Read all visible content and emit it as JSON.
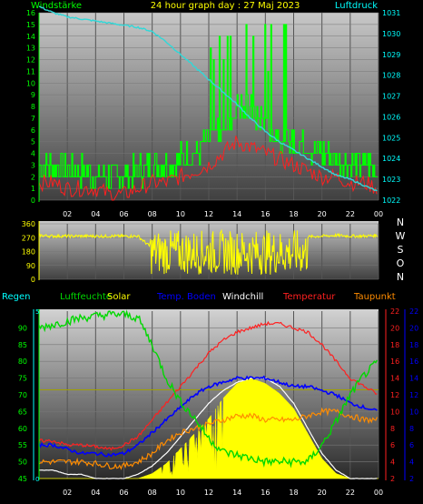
{
  "header": {
    "left_title": "Windstärke",
    "center_title": "24 hour graph day : 27 Maj 2023",
    "right_title": "Luftdruck"
  },
  "colors": {
    "wind": "#00ff00",
    "gust_red": "#ff2020",
    "pressure": "#30d8d8",
    "direction": "#ffff00",
    "humidity": "#00d800",
    "solar": "#ffff00",
    "soil": "#0000ff",
    "windchill": "#ffffff",
    "temperature": "#ff2020",
    "dewpoint": "#ff8c00",
    "rain": "#00ffff",
    "axis_left": "#00ff00",
    "axis_right_cyan": "#00ffff"
  },
  "legend": {
    "rain": "Regen",
    "humidity": "Luftfeuchte",
    "solar": "Solar",
    "soil": "Temp. Boden",
    "windchill": "Windchill",
    "temperature": "Temperatur",
    "dewpoint": "Taupunkt"
  },
  "compass": [
    "N",
    "W",
    "S",
    "O",
    "N"
  ],
  "x_ticks": [
    "02",
    "04",
    "06",
    "08",
    "10",
    "12",
    "14",
    "16",
    "18",
    "20",
    "22",
    "00"
  ],
  "chart_data": [
    {
      "type": "line",
      "name": "wind-and-pressure",
      "x_hours": [
        0,
        1,
        2,
        3,
        4,
        5,
        6,
        7,
        8,
        9,
        10,
        11,
        12,
        13,
        14,
        15,
        16,
        17,
        18,
        19,
        20,
        21,
        22,
        23,
        24
      ],
      "series": [
        {
          "name": "Windstärke",
          "axis": "left",
          "values": [
            3,
            3,
            2.5,
            2.5,
            2,
            2,
            2,
            2.5,
            3,
            3,
            3.5,
            4,
            5,
            6.5,
            8,
            7.5,
            6.5,
            5.5,
            5,
            4.5,
            4,
            3.5,
            3,
            3,
            2.5
          ]
        },
        {
          "name": "Luftdruck",
          "axis": "right",
          "values": [
            1031.3,
            1031.0,
            1030.8,
            1030.7,
            1030.6,
            1030.5,
            1030.4,
            1030.3,
            1030.1,
            1029.6,
            1029.0,
            1028.4,
            1027.8,
            1027.2,
            1026.6,
            1025.9,
            1025.3,
            1024.8,
            1024.4,
            1024.0,
            1023.6,
            1023.2,
            1023.0,
            1022.7,
            1022.4
          ]
        }
      ],
      "gust_values": [
        1.5,
        1.5,
        1,
        1,
        1,
        0.5,
        0.5,
        1,
        1.5,
        1.5,
        2,
        2.5,
        3,
        4,
        5,
        4.5,
        4,
        3.5,
        3,
        2.5,
        2,
        2,
        1.5,
        1.5,
        1
      ],
      "ylim_left": [
        0,
        16
      ],
      "ylim_right": [
        1022,
        1031
      ],
      "yticks_left": [
        "0",
        "1",
        "2",
        "3",
        "4",
        "5",
        "6",
        "7",
        "8",
        "9",
        "10",
        "11",
        "12",
        "13",
        "14",
        "15",
        "16"
      ],
      "yticks_right": [
        "1022",
        "1023",
        "1024",
        "1025",
        "1026",
        "1027",
        "1028",
        "1029",
        "1030",
        "1031"
      ]
    },
    {
      "type": "scatter",
      "name": "wind-direction",
      "x_hours": [
        0,
        1,
        2,
        3,
        4,
        5,
        6,
        7,
        8,
        9,
        10,
        11,
        12,
        13,
        14,
        15,
        16,
        17,
        18,
        19,
        20,
        21,
        22,
        23,
        24
      ],
      "values": [
        285,
        280,
        280,
        280,
        280,
        280,
        280,
        280,
        200,
        160,
        150,
        190,
        130,
        170,
        150,
        140,
        170,
        190,
        200,
        275,
        280,
        285,
        280,
        280,
        285
      ],
      "ylim": [
        0,
        360
      ],
      "yticks": [
        "0",
        "90",
        "180",
        "270",
        "360"
      ]
    },
    {
      "type": "line",
      "name": "temperature-humidity-solar",
      "x_hours": [
        0,
        1,
        2,
        3,
        4,
        5,
        6,
        7,
        8,
        9,
        10,
        11,
        12,
        13,
        14,
        15,
        16,
        17,
        18,
        19,
        20,
        21,
        22,
        23,
        24
      ],
      "series": [
        {
          "name": "Luftfeuchte",
          "axis": "humidity",
          "values": [
            90,
            91,
            92,
            93,
            93.5,
            94,
            94,
            93,
            85,
            75,
            68,
            63,
            57,
            53,
            52,
            51,
            50,
            50,
            50,
            50,
            55,
            62,
            70,
            76,
            80
          ]
        },
        {
          "name": "Temperatur",
          "axis": "temp",
          "values": [
            6.5,
            6.5,
            6,
            6,
            5.8,
            5.5,
            6,
            7,
            9,
            11,
            13,
            15,
            17,
            18.5,
            19.5,
            20,
            20.5,
            20.5,
            20,
            19.5,
            18,
            16,
            14,
            13,
            12
          ]
        },
        {
          "name": "Taupunkt",
          "axis": "temp",
          "values": [
            4,
            4,
            4,
            4,
            3.8,
            3.5,
            3.5,
            4,
            5,
            6.5,
            7.5,
            8,
            8.5,
            9,
            9.5,
            9.5,
            9,
            9,
            9,
            9.5,
            10,
            10,
            9.5,
            9,
            9
          ]
        },
        {
          "name": "Temp. Boden",
          "axis": "temp",
          "values": [
            6,
            6,
            5.5,
            5,
            5,
            4.8,
            5,
            6,
            7.5,
            9,
            10.5,
            12,
            13,
            13.5,
            14,
            14,
            14,
            13.5,
            13,
            13,
            12.5,
            12,
            11,
            10.5,
            10
          ]
        },
        {
          "name": "Windchill",
          "axis": "temp",
          "values": [
            3,
            3,
            2.5,
            2.5,
            2,
            2,
            2,
            2.5,
            3.5,
            5,
            7,
            9,
            11,
            12.5,
            13.5,
            14,
            14,
            13,
            11,
            8,
            5,
            3,
            2,
            2,
            2
          ]
        },
        {
          "name": "Solar",
          "axis": "solar",
          "values": [
            0,
            0,
            0,
            0,
            0,
            0,
            0,
            0,
            5,
            15,
            30,
            45,
            60,
            80,
            95,
            100,
            95,
            85,
            70,
            45,
            20,
            5,
            0,
            0,
            0
          ]
        }
      ],
      "ylim_humidity": [
        45,
        95
      ],
      "yticks_humidity": [
        "45",
        "50",
        "55",
        "60",
        "65",
        "70",
        "75",
        "80",
        "85",
        "90"
      ],
      "ylim_temp": [
        2,
        22
      ],
      "yticks_temp": [
        "2",
        "4",
        "6",
        "8",
        "10",
        "12",
        "14",
        "16",
        "18",
        "20",
        "22"
      ],
      "ylim_rain": [
        0,
        5
      ],
      "yticks_rain": [
        "0",
        "5"
      ]
    }
  ]
}
